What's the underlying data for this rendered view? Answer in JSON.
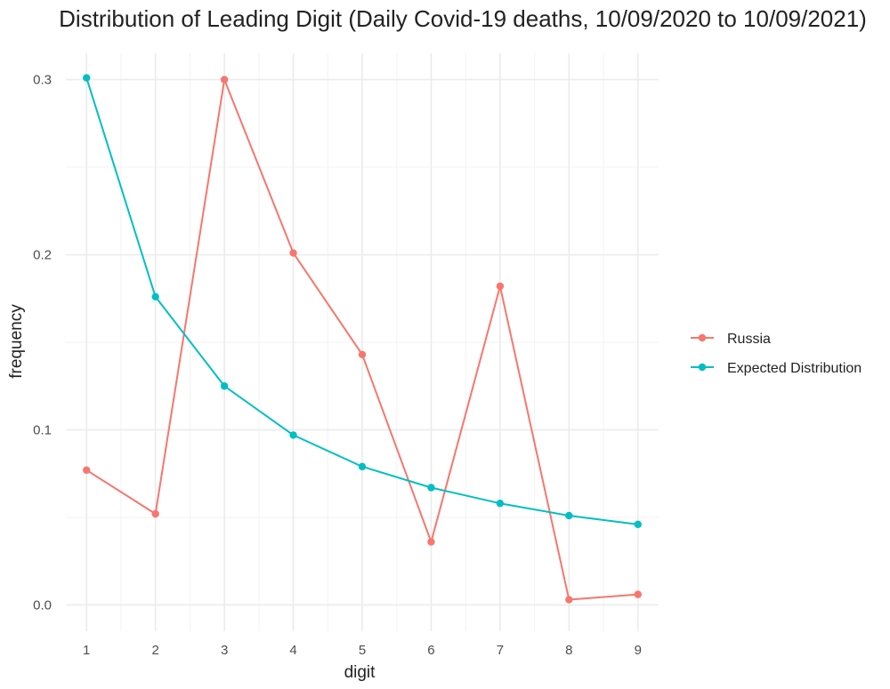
{
  "chart_data": {
    "type": "line",
    "title": "Distribution of Leading Digit (Daily Covid-19 deaths, 10/09/2020 to 10/09/2021)",
    "xlabel": "digit",
    "ylabel": "frequency",
    "x": [
      1,
      2,
      3,
      4,
      5,
      6,
      7,
      8,
      9
    ],
    "x_tick_labels": [
      "1",
      "2",
      "3",
      "4",
      "5",
      "6",
      "7",
      "8",
      "9"
    ],
    "xlim": [
      0.7,
      9.3
    ],
    "y_ticks": [
      0.0,
      0.1,
      0.2,
      0.3
    ],
    "y_tick_labels": [
      "0.0",
      "0.1",
      "0.2",
      "0.3"
    ],
    "ylim": [
      -0.015,
      0.315
    ],
    "grid": true,
    "legend_position": "right",
    "series": [
      {
        "name": "Russia",
        "color": "#F8766D",
        "values": [
          0.077,
          0.052,
          0.3,
          0.201,
          0.143,
          0.036,
          0.182,
          0.003,
          0.006
        ]
      },
      {
        "name": "Expected Distribution",
        "color": "#00BFC4",
        "values": [
          0.301,
          0.176,
          0.125,
          0.097,
          0.079,
          0.067,
          0.058,
          0.051,
          0.046
        ]
      }
    ]
  }
}
